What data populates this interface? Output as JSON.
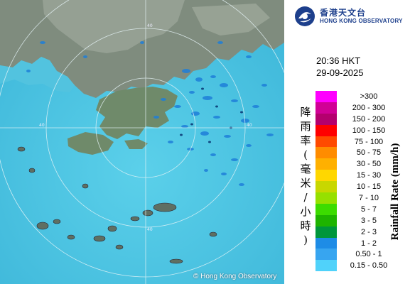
{
  "organization": {
    "name_zh": "香港天文台",
    "name_en": "HONG KONG OBSERVATORY",
    "logo_icon": "hko-logo-icon",
    "brand_color": "#1d3f8c"
  },
  "timestamp": {
    "time": "20:36 HKT",
    "date": "29-09-2025"
  },
  "map": {
    "copyright": "© Hong Kong Observatory",
    "sea_color": "#4cc6e3",
    "land_color": "#7f8c7e",
    "range_ring_labels": [
      "40",
      "40",
      "40",
      "40"
    ]
  },
  "legend": {
    "title_zh_chars": [
      "降",
      "雨",
      "率",
      "(",
      "毫",
      "米",
      "/",
      "小",
      "時",
      ")"
    ],
    "title_en": "Rainfall Rate (mm/h)",
    "levels": [
      {
        "label": ">300",
        "color": "#ff00ff"
      },
      {
        "label": "200 - 300",
        "color": "#d10096"
      },
      {
        "label": "150 - 200",
        "color": "#b4006e"
      },
      {
        "label": "100 - 150",
        "color": "#ff0000"
      },
      {
        "label": "75 - 100",
        "color": "#ff4a00"
      },
      {
        "label": "50 - 75",
        "color": "#ff8c00"
      },
      {
        "label": "30 - 50",
        "color": "#ffb000"
      },
      {
        "label": "15 - 30",
        "color": "#ffd700"
      },
      {
        "label": "10 - 15",
        "color": "#c8d700"
      },
      {
        "label": "7 - 10",
        "color": "#96e000"
      },
      {
        "label": "5 - 7",
        "color": "#3cdc00"
      },
      {
        "label": "3 - 5",
        "color": "#1eb400"
      },
      {
        "label": "2 - 3",
        "color": "#00963c"
      },
      {
        "label": "1 - 2",
        "color": "#1e8ce6"
      },
      {
        "label": "0.50 - 1",
        "color": "#37a5f0"
      },
      {
        "label": "0.15 - 0.50",
        "color": "#50d2fa"
      }
    ]
  }
}
